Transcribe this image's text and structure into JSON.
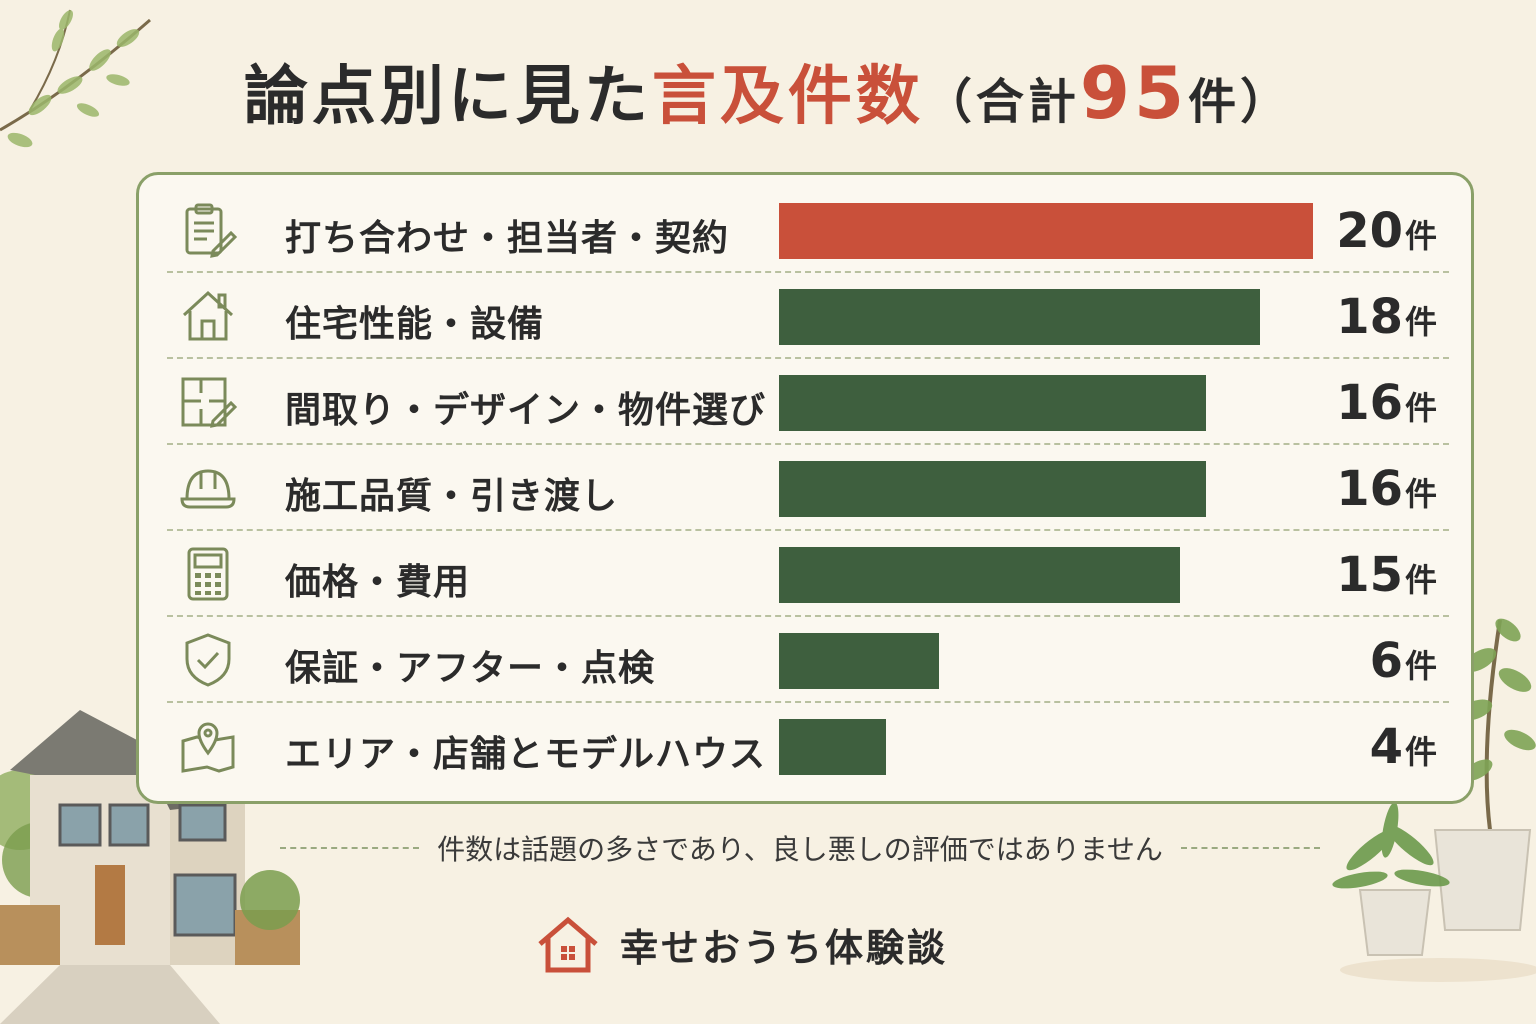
{
  "title": {
    "main": "論点別に見た",
    "accent": "言及件数",
    "paren_open": "（",
    "total_prefix": "合計",
    "total_value": "95",
    "total_unit": "件",
    "paren_close": "）"
  },
  "chart_data": {
    "type": "bar",
    "orientation": "horizontal",
    "title": "論点別に見た言及件数（合計95件）",
    "unit": "件",
    "categories": [
      "打ち合わせ・担当者・契約",
      "住宅性能・設備",
      "間取り・デザイン・物件選び",
      "施工品質・引き渡し",
      "価格・費用",
      "保証・アフター・点検",
      "エリア・店舗とモデルハウス"
    ],
    "values": [
      20,
      18,
      16,
      16,
      15,
      6,
      4
    ],
    "value_labels": [
      "20",
      "18",
      "16",
      "16",
      "15",
      "6",
      "4"
    ],
    "xlim": [
      0,
      20
    ],
    "grid": false,
    "colors": {
      "highlight": "#c9503a",
      "default": "#3e5f3e"
    }
  },
  "rows": [
    {
      "icon": "clipboard-pencil-icon",
      "label": "打ち合わせ・担当者・契約",
      "value": "20",
      "unit": "件"
    },
    {
      "icon": "house-icon",
      "label": "住宅性能・設備",
      "value": "18",
      "unit": "件"
    },
    {
      "icon": "floorplan-pencil-icon",
      "label": "間取り・デザイン・物件選び",
      "value": "16",
      "unit": "件"
    },
    {
      "icon": "hardhat-icon",
      "label": "施工品質・引き渡し",
      "value": "16",
      "unit": "件"
    },
    {
      "icon": "calculator-icon",
      "label": "価格・費用",
      "value": "15",
      "unit": "件"
    },
    {
      "icon": "shield-check-icon",
      "label": "保証・アフター・点検",
      "value": "6",
      "unit": "件"
    },
    {
      "icon": "map-pin-icon",
      "label": "エリア・店舗とモデルハウス",
      "value": "4",
      "unit": "件"
    }
  ],
  "note": "件数は話題の多さであり、良し悪しの評価ではありません",
  "brand": {
    "icon": "house-logo-icon",
    "name": "幸せおうち体験談"
  },
  "colors": {
    "background": "#f7f1e3",
    "accent": "#c9503a",
    "bar": "#3e5f3e",
    "border": "#8aa068"
  }
}
